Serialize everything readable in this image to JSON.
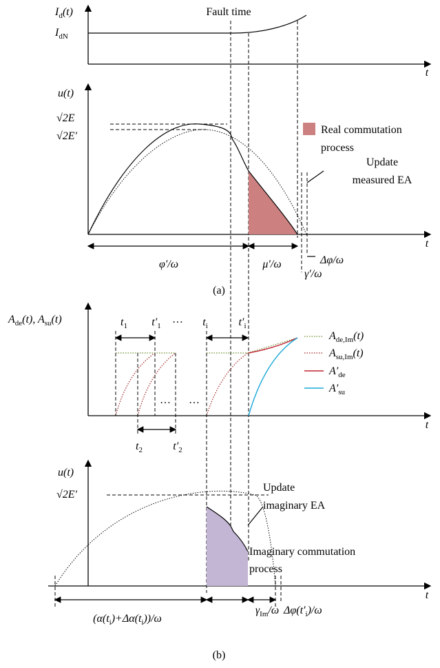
{
  "labels": {
    "id": [
      "I",
      {
        "sub": "d"
      },
      "(t)"
    ],
    "idn": [
      "I",
      {
        "sub": "dN"
      }
    ],
    "fault": [
      "Fault time"
    ],
    "t_top": [
      "t"
    ],
    "u_a": [
      "u(t)"
    ],
    "e_a": [
      "√2E"
    ],
    "e2_a": [
      "√2E′"
    ],
    "real1": [
      "Real commutation"
    ],
    "real2": [
      "process"
    ],
    "upd_a1": [
      "Update"
    ],
    "upd_a2": [
      "measured EA"
    ],
    "t_a": [
      "t"
    ],
    "phi": [
      "φ′/ω"
    ],
    "mu": [
      "μ′/ω"
    ],
    "dphi": [
      "Δφ/ω"
    ],
    "gamma": [
      "γ′/ω"
    ],
    "cap_a": [
      "(a)"
    ],
    "ylab_c": [
      "A",
      {
        "sub": "de"
      },
      "(t), A",
      {
        "sub": "su"
      },
      "(t)"
    ],
    "t1": [
      "t",
      {
        "sub": "1"
      }
    ],
    "t1p": [
      "t′",
      {
        "sub": "1"
      }
    ],
    "dots1": [
      "…"
    ],
    "ti": [
      "t",
      {
        "sub": "i"
      }
    ],
    "tip": [
      "t′",
      {
        "sub": "i"
      }
    ],
    "dots2": [
      "…"
    ],
    "dots3": [
      "…"
    ],
    "t2": [
      "t",
      {
        "sub": "2"
      }
    ],
    "t2p": [
      "t′",
      {
        "sub": "2"
      }
    ],
    "t_c": [
      "t"
    ],
    "leg_de": [
      "A",
      {
        "sub": "de,Im"
      },
      "(t)"
    ],
    "leg_su": [
      "A",
      {
        "sub": "su,Im"
      },
      "(t)"
    ],
    "leg_dep": [
      "A′",
      {
        "sub": "de"
      }
    ],
    "leg_sup": [
      "A′",
      {
        "sub": "su"
      }
    ],
    "u_b": [
      "u(t)"
    ],
    "e_b": [
      "√2E′"
    ],
    "upd_b1": [
      "Update"
    ],
    "upd_b2": [
      "imaginary  EA"
    ],
    "img1": [
      "Imaginary commutation"
    ],
    "img2": [
      "process"
    ],
    "t_b": [
      "t"
    ],
    "alpha": [
      "(α(t",
      {
        "sub": "i"
      },
      ")+Δα(t",
      {
        "sub": "i"
      },
      "))/ω"
    ],
    "gim": [
      "γ",
      {
        "sub": "Im"
      },
      "/ω"
    ],
    "dphib": [
      "Δφ(t′",
      {
        "sub": "i"
      },
      ")/ω"
    ],
    "cap_b": [
      "(b)"
    ]
  }
}
